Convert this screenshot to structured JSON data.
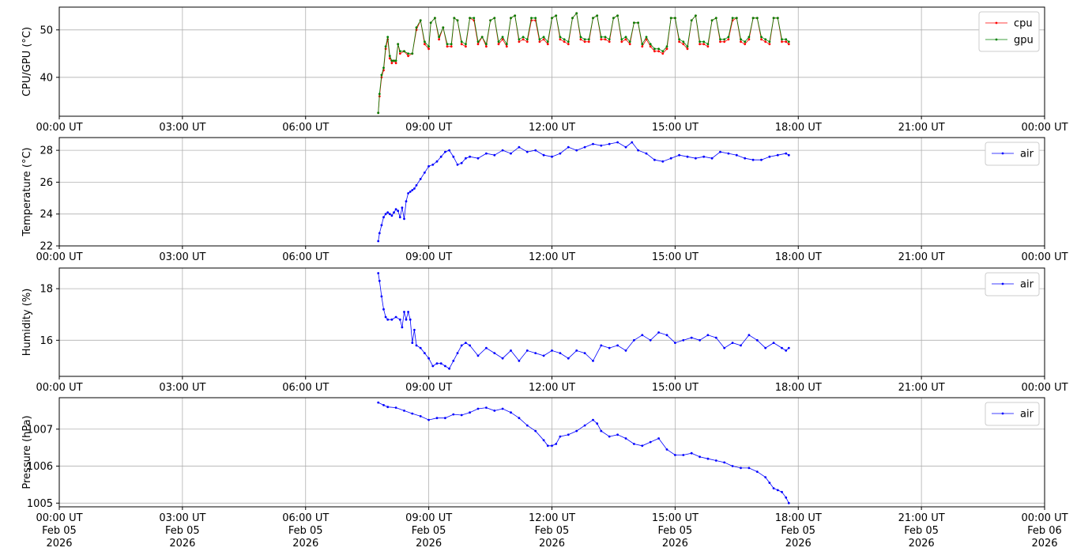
{
  "chart_data": [
    {
      "type": "line",
      "ylabel": "CPU/GPU (°C)",
      "ylim": [
        31.8,
        54.8
      ],
      "yticks": [
        40,
        50
      ],
      "xlim_hours": [
        0,
        24
      ],
      "xtick_labels": [
        "00:00 UT",
        "03:00 UT",
        "06:00 UT",
        "09:00 UT",
        "12:00 UT",
        "15:00 UT",
        "18:00 UT",
        "21:00 UT",
        "00:00 UT"
      ],
      "grid": true,
      "legend_position": "upper-right",
      "series": [
        {
          "name": "cpu",
          "color": "#ff0000",
          "x_hours": [
            7.77,
            7.8,
            7.85,
            7.9,
            7.95,
            8.0,
            8.05,
            8.1,
            8.15,
            8.2,
            8.25,
            8.3,
            8.4,
            8.5,
            8.6,
            8.7,
            8.8,
            8.9,
            9.0,
            9.05,
            9.15,
            9.25,
            9.35,
            9.45,
            9.55,
            9.62,
            9.7,
            9.8,
            9.9,
            10.0,
            10.1,
            10.2,
            10.3,
            10.4,
            10.5,
            10.6,
            10.7,
            10.8,
            10.9,
            11.0,
            11.1,
            11.2,
            11.3,
            11.4,
            11.5,
            11.6,
            11.7,
            11.8,
            11.9,
            12.0,
            12.1,
            12.2,
            12.3,
            12.4,
            12.5,
            12.6,
            12.7,
            12.8,
            12.9,
            13.0,
            13.1,
            13.2,
            13.3,
            13.4,
            13.5,
            13.6,
            13.7,
            13.8,
            13.9,
            14.0,
            14.1,
            14.2,
            14.3,
            14.4,
            14.5,
            14.6,
            14.7,
            14.8,
            14.9,
            15.0,
            15.1,
            15.2,
            15.3,
            15.4,
            15.5,
            15.6,
            15.7,
            15.8,
            15.9,
            16.0,
            16.1,
            16.2,
            16.3,
            16.4,
            16.5,
            16.6,
            16.7,
            16.8,
            16.9,
            17.0,
            17.1,
            17.2,
            17.3,
            17.4,
            17.5,
            17.6,
            17.7,
            17.77
          ],
          "values": [
            32.5,
            36.0,
            40.0,
            41.5,
            46.0,
            48.0,
            44.0,
            43.0,
            43.5,
            43.0,
            47.0,
            45.0,
            45.5,
            44.5,
            45.0,
            50.0,
            52.0,
            47.0,
            46.0,
            51.5,
            52.5,
            48.0,
            50.5,
            46.5,
            46.5,
            52.5,
            52.0,
            47.0,
            46.5,
            52.5,
            52.0,
            47.0,
            48.5,
            46.5,
            52.0,
            52.5,
            47.0,
            48.0,
            46.5,
            52.5,
            53.0,
            47.5,
            48.0,
            47.5,
            52.0,
            52.0,
            47.5,
            48.0,
            47.0,
            52.5,
            53.0,
            48.0,
            47.5,
            47.0,
            52.5,
            53.5,
            48.0,
            47.5,
            47.5,
            52.5,
            53.0,
            48.0,
            48.0,
            47.5,
            52.5,
            53.0,
            47.5,
            48.0,
            47.0,
            51.5,
            51.5,
            46.5,
            48.0,
            46.5,
            45.5,
            45.5,
            45.0,
            46.0,
            52.5,
            52.5,
            47.5,
            47.0,
            46.0,
            52.0,
            53.0,
            47.0,
            47.0,
            46.5,
            52.0,
            52.5,
            47.5,
            47.5,
            48.0,
            52.0,
            52.5,
            47.5,
            47.0,
            48.0,
            52.5,
            52.5,
            48.0,
            47.5,
            47.0,
            52.5,
            52.5,
            47.5,
            47.5,
            47.0
          ]
        },
        {
          "name": "gpu",
          "color": "#008000",
          "x_hours": [
            7.77,
            7.8,
            7.85,
            7.9,
            7.95,
            8.0,
            8.05,
            8.1,
            8.15,
            8.2,
            8.25,
            8.3,
            8.4,
            8.5,
            8.6,
            8.7,
            8.8,
            8.9,
            9.0,
            9.05,
            9.15,
            9.25,
            9.35,
            9.45,
            9.55,
            9.62,
            9.7,
            9.8,
            9.9,
            10.0,
            10.1,
            10.2,
            10.3,
            10.4,
            10.5,
            10.6,
            10.7,
            10.8,
            10.9,
            11.0,
            11.1,
            11.2,
            11.3,
            11.4,
            11.5,
            11.6,
            11.7,
            11.8,
            11.9,
            12.0,
            12.1,
            12.2,
            12.3,
            12.4,
            12.5,
            12.6,
            12.7,
            12.8,
            12.9,
            13.0,
            13.1,
            13.2,
            13.3,
            13.4,
            13.5,
            13.6,
            13.7,
            13.8,
            13.9,
            14.0,
            14.1,
            14.2,
            14.3,
            14.4,
            14.5,
            14.6,
            14.7,
            14.8,
            14.9,
            15.0,
            15.1,
            15.2,
            15.3,
            15.4,
            15.5,
            15.6,
            15.7,
            15.8,
            15.9,
            16.0,
            16.1,
            16.2,
            16.3,
            16.4,
            16.5,
            16.6,
            16.7,
            16.8,
            16.9,
            17.0,
            17.1,
            17.2,
            17.3,
            17.4,
            17.5,
            17.6,
            17.7,
            17.77
          ],
          "values": [
            32.5,
            36.5,
            40.5,
            42.0,
            46.5,
            48.5,
            44.5,
            43.5,
            43.5,
            43.5,
            47.0,
            45.5,
            45.5,
            45.0,
            45.0,
            50.5,
            52.0,
            47.5,
            46.5,
            51.5,
            52.5,
            48.5,
            50.5,
            47.0,
            47.0,
            52.5,
            52.0,
            47.5,
            47.0,
            52.5,
            52.5,
            47.5,
            48.5,
            47.0,
            52.0,
            52.5,
            47.5,
            48.5,
            47.0,
            52.5,
            53.0,
            48.0,
            48.5,
            48.0,
            52.5,
            52.5,
            48.0,
            48.5,
            47.5,
            52.5,
            53.0,
            48.5,
            48.0,
            47.5,
            52.5,
            53.5,
            48.5,
            48.0,
            48.0,
            52.5,
            53.0,
            48.5,
            48.5,
            48.0,
            52.5,
            53.0,
            48.0,
            48.5,
            47.5,
            51.5,
            51.5,
            47.0,
            48.5,
            47.0,
            46.0,
            46.0,
            45.5,
            46.5,
            52.5,
            52.5,
            48.0,
            47.5,
            46.5,
            52.0,
            53.0,
            47.5,
            47.5,
            47.0,
            52.0,
            52.5,
            48.0,
            48.0,
            48.5,
            52.5,
            52.5,
            48.0,
            47.5,
            48.5,
            52.5,
            52.5,
            48.5,
            48.0,
            47.5,
            52.5,
            52.5,
            48.0,
            48.0,
            47.5
          ]
        }
      ]
    },
    {
      "type": "line",
      "ylabel": "Temperature (°C)",
      "ylim": [
        22,
        28.8
      ],
      "yticks": [
        22,
        24,
        26,
        28
      ],
      "xlim_hours": [
        0,
        24
      ],
      "xtick_labels": [
        "00:00 UT",
        "03:00 UT",
        "06:00 UT",
        "09:00 UT",
        "12:00 UT",
        "15:00 UT",
        "18:00 UT",
        "21:00 UT",
        "00:00 UT"
      ],
      "grid": true,
      "legend_position": "upper-right",
      "series": [
        {
          "name": "air",
          "color": "#0000ff",
          "x_hours": [
            7.77,
            7.8,
            7.85,
            7.9,
            7.95,
            8.0,
            8.05,
            8.1,
            8.15,
            8.2,
            8.25,
            8.3,
            8.35,
            8.4,
            8.45,
            8.5,
            8.55,
            8.6,
            8.65,
            8.7,
            8.8,
            8.9,
            9.0,
            9.1,
            9.2,
            9.3,
            9.4,
            9.5,
            9.6,
            9.7,
            9.8,
            9.9,
            10.0,
            10.2,
            10.4,
            10.6,
            10.8,
            11.0,
            11.2,
            11.4,
            11.6,
            11.8,
            12.0,
            12.2,
            12.4,
            12.6,
            12.8,
            13.0,
            13.2,
            13.4,
            13.6,
            13.8,
            13.95,
            14.1,
            14.3,
            14.5,
            14.7,
            14.9,
            15.1,
            15.3,
            15.5,
            15.7,
            15.9,
            16.1,
            16.3,
            16.5,
            16.7,
            16.9,
            17.1,
            17.3,
            17.5,
            17.7,
            17.77
          ],
          "values": [
            22.3,
            22.8,
            23.3,
            23.8,
            24.0,
            24.1,
            24.0,
            23.9,
            24.1,
            24.3,
            24.2,
            23.8,
            24.4,
            23.7,
            24.8,
            25.3,
            25.4,
            25.5,
            25.6,
            25.8,
            26.2,
            26.6,
            27.0,
            27.1,
            27.3,
            27.6,
            27.9,
            28.0,
            27.6,
            27.1,
            27.2,
            27.5,
            27.6,
            27.5,
            27.8,
            27.7,
            28.0,
            27.8,
            28.2,
            27.9,
            28.0,
            27.7,
            27.6,
            27.8,
            28.2,
            28.0,
            28.2,
            28.4,
            28.3,
            28.4,
            28.5,
            28.2,
            28.5,
            28.0,
            27.8,
            27.4,
            27.3,
            27.5,
            27.7,
            27.6,
            27.5,
            27.6,
            27.5,
            27.9,
            27.8,
            27.7,
            27.5,
            27.4,
            27.4,
            27.6,
            27.7,
            27.8,
            27.7
          ]
        }
      ]
    },
    {
      "type": "line",
      "ylabel": "Humidity (%)",
      "ylim": [
        14.6,
        18.8
      ],
      "yticks": [
        16,
        18
      ],
      "xlim_hours": [
        0,
        24
      ],
      "xtick_labels": [
        "00:00 UT",
        "03:00 UT",
        "06:00 UT",
        "09:00 UT",
        "12:00 UT",
        "15:00 UT",
        "18:00 UT",
        "21:00 UT",
        "00:00 UT"
      ],
      "grid": true,
      "legend_position": "upper-right",
      "series": [
        {
          "name": "air",
          "color": "#0000ff",
          "x_hours": [
            7.77,
            7.8,
            7.85,
            7.9,
            7.95,
            8.0,
            8.1,
            8.2,
            8.3,
            8.35,
            8.4,
            8.45,
            8.5,
            8.55,
            8.6,
            8.65,
            8.7,
            8.8,
            8.9,
            9.0,
            9.1,
            9.2,
            9.3,
            9.4,
            9.5,
            9.6,
            9.7,
            9.8,
            9.9,
            10.0,
            10.2,
            10.4,
            10.6,
            10.8,
            11.0,
            11.2,
            11.4,
            11.6,
            11.8,
            12.0,
            12.2,
            12.4,
            12.6,
            12.8,
            13.0,
            13.2,
            13.4,
            13.6,
            13.8,
            14.0,
            14.2,
            14.4,
            14.6,
            14.8,
            15.0,
            15.2,
            15.4,
            15.6,
            15.8,
            16.0,
            16.2,
            16.4,
            16.6,
            16.8,
            17.0,
            17.2,
            17.4,
            17.6,
            17.7,
            17.77
          ],
          "values": [
            18.6,
            18.3,
            17.7,
            17.2,
            16.9,
            16.8,
            16.8,
            16.9,
            16.8,
            16.5,
            17.1,
            16.8,
            17.1,
            16.8,
            15.9,
            16.4,
            15.8,
            15.7,
            15.5,
            15.3,
            15.0,
            15.1,
            15.1,
            15.0,
            14.9,
            15.2,
            15.5,
            15.8,
            15.9,
            15.8,
            15.4,
            15.7,
            15.5,
            15.3,
            15.6,
            15.2,
            15.6,
            15.5,
            15.4,
            15.6,
            15.5,
            15.3,
            15.6,
            15.5,
            15.2,
            15.8,
            15.7,
            15.8,
            15.6,
            16.0,
            16.2,
            16.0,
            16.3,
            16.2,
            15.9,
            16.0,
            16.1,
            16.0,
            16.2,
            16.1,
            15.7,
            15.9,
            15.8,
            16.2,
            16.0,
            15.7,
            15.9,
            15.7,
            15.6,
            15.7
          ]
        }
      ]
    },
    {
      "type": "line",
      "ylabel": "Pressure (hPa)",
      "ylim": [
        1004.9,
        1007.85
      ],
      "yticks": [
        1005,
        1006,
        1007
      ],
      "xlim_hours": [
        0,
        24
      ],
      "xtick_labels": [
        "00:00 UT\nFeb 05\n2026",
        "03:00 UT\nFeb 05\n2026",
        "06:00 UT\nFeb 05\n2026",
        "09:00 UT\nFeb 05\n2026",
        "12:00 UT\nFeb 05\n2026",
        "15:00 UT\nFeb 05\n2026",
        "18:00 UT\nFeb 05\n2026",
        "21:00 UT\nFeb 05\n2026",
        "00:00 UT\nFeb 06\n2026"
      ],
      "grid": true,
      "legend_position": "upper-right",
      "series": [
        {
          "name": "air",
          "color": "#0000ff",
          "x_hours": [
            7.77,
            7.9,
            8.0,
            8.2,
            8.4,
            8.6,
            8.8,
            9.0,
            9.2,
            9.4,
            9.6,
            9.8,
            10.0,
            10.2,
            10.4,
            10.6,
            10.8,
            11.0,
            11.2,
            11.4,
            11.6,
            11.8,
            11.9,
            12.0,
            12.1,
            12.2,
            12.4,
            12.6,
            12.8,
            13.0,
            13.1,
            13.2,
            13.4,
            13.6,
            13.8,
            14.0,
            14.2,
            14.4,
            14.6,
            14.8,
            15.0,
            15.2,
            15.4,
            15.6,
            15.8,
            16.0,
            16.2,
            16.4,
            16.6,
            16.8,
            17.0,
            17.2,
            17.3,
            17.4,
            17.5,
            17.6,
            17.7,
            17.77
          ],
          "values": [
            1007.72,
            1007.65,
            1007.6,
            1007.58,
            1007.5,
            1007.42,
            1007.35,
            1007.25,
            1007.3,
            1007.3,
            1007.4,
            1007.38,
            1007.45,
            1007.55,
            1007.58,
            1007.5,
            1007.55,
            1007.45,
            1007.3,
            1007.1,
            1006.95,
            1006.7,
            1006.55,
            1006.55,
            1006.6,
            1006.8,
            1006.85,
            1006.95,
            1007.1,
            1007.25,
            1007.15,
            1006.95,
            1006.8,
            1006.85,
            1006.75,
            1006.6,
            1006.55,
            1006.65,
            1006.75,
            1006.45,
            1006.3,
            1006.3,
            1006.35,
            1006.25,
            1006.2,
            1006.15,
            1006.1,
            1006.0,
            1005.95,
            1005.95,
            1005.85,
            1005.7,
            1005.55,
            1005.4,
            1005.35,
            1005.3,
            1005.15,
            1005.0
          ]
        }
      ]
    }
  ]
}
